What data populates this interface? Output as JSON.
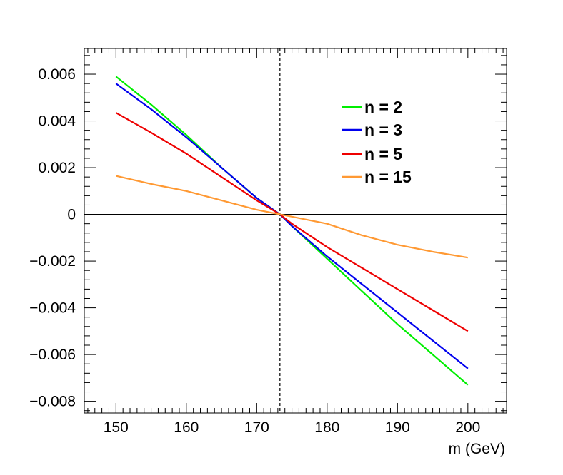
{
  "chart_data": {
    "type": "line",
    "title": "",
    "xlabel": "m (GeV)",
    "ylabel": "",
    "xlim": [
      145.5,
      205.5
    ],
    "ylim": [
      -0.0085,
      0.0071
    ],
    "x_ticks": [
      150,
      160,
      170,
      180,
      190,
      200
    ],
    "x_tick_labels": [
      "150",
      "160",
      "170",
      "180",
      "190",
      "200"
    ],
    "y_ticks": [
      0.006,
      0.004,
      0.002,
      0,
      -0.002,
      -0.004,
      -0.006,
      -0.008
    ],
    "y_tick_labels": [
      "0.006",
      "0.004",
      "0.002",
      "0",
      "−0.002",
      "−0.004",
      "−0.006",
      "−0.008"
    ],
    "vertical_reference_line": {
      "x": 173.3,
      "style": "dashed"
    },
    "horizontal_reference_line": {
      "y": 0
    },
    "legend_position": "top-right",
    "grid": false,
    "series": [
      {
        "name": "n = 2",
        "color": "#00ee00",
        "x": [
          150,
          155,
          160,
          165,
          170,
          173.3,
          175,
          180,
          185,
          190,
          195,
          200
        ],
        "y": [
          0.0059,
          0.0047,
          0.0034,
          0.002,
          0.0007,
          0.0,
          -0.0005,
          -0.0019,
          -0.0033,
          -0.0047,
          -0.006,
          -0.0073
        ]
      },
      {
        "name": "n = 3",
        "color": "#0000ee",
        "x": [
          150,
          155,
          160,
          165,
          170,
          173.3,
          175,
          180,
          185,
          190,
          195,
          200
        ],
        "y": [
          0.0056,
          0.0045,
          0.0033,
          0.002,
          0.0007,
          0.0,
          -0.0005,
          -0.0018,
          -0.003,
          -0.0042,
          -0.0054,
          -0.0066
        ]
      },
      {
        "name": "n = 5",
        "color": "#ee0000",
        "x": [
          150,
          155,
          160,
          165,
          170,
          173.3,
          175,
          180,
          185,
          190,
          195,
          200
        ],
        "y": [
          0.00435,
          0.0035,
          0.0026,
          0.0016,
          0.0006,
          0.0,
          -0.0004,
          -0.0014,
          -0.0023,
          -0.0032,
          -0.0041,
          -0.005
        ]
      },
      {
        "name": "n = 15",
        "color": "#ff9933",
        "x": [
          150,
          155,
          160,
          165,
          170,
          173.3,
          175,
          180,
          185,
          190,
          195,
          200
        ],
        "y": [
          0.00165,
          0.0013,
          0.001,
          0.0006,
          0.0002,
          0.0,
          -0.0001,
          -0.0004,
          -0.0009,
          -0.0013,
          -0.0016,
          -0.00185
        ]
      }
    ]
  }
}
